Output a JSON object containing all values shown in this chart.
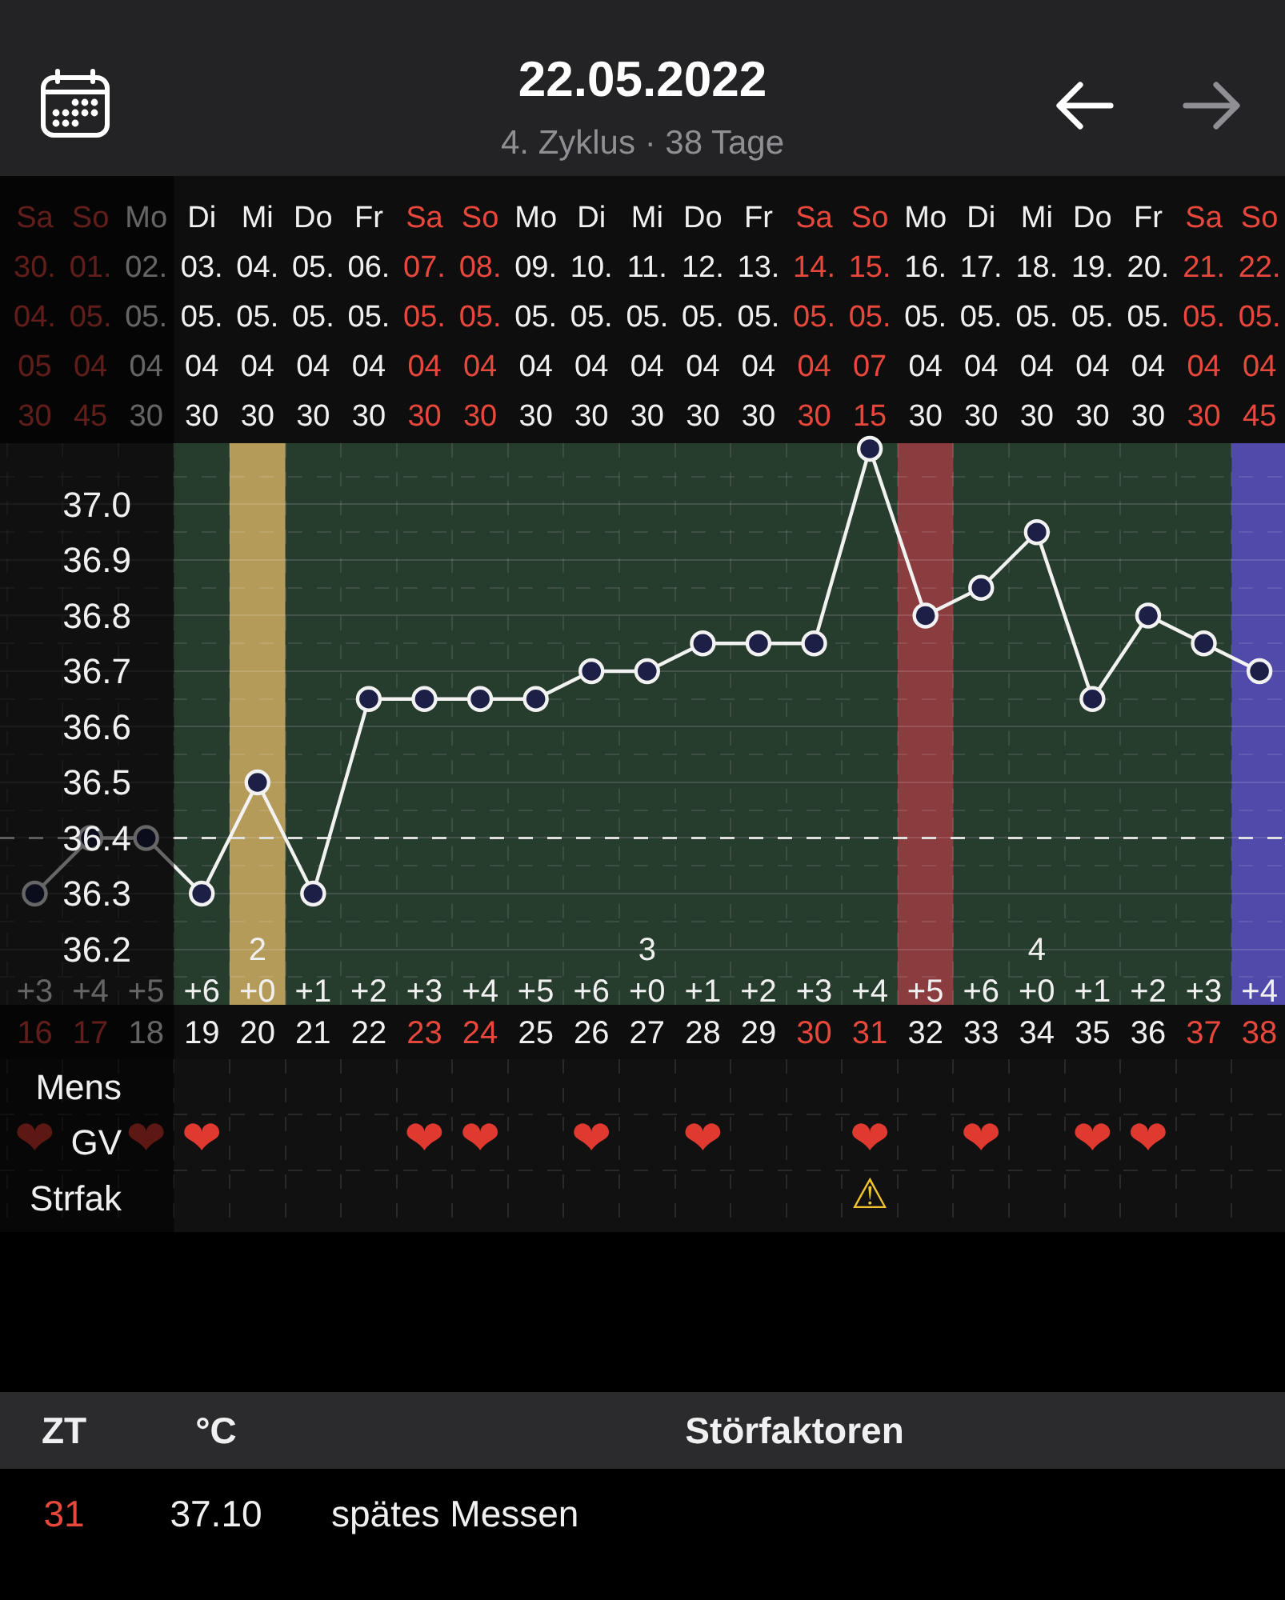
{
  "chart_data": [
    {
      "type": "line",
      "title": "22.05.2022",
      "subtitle": "4. Zyklus · 38 Tage",
      "x": [
        "2022-04-30",
        "2022-05-01",
        "2022-05-02",
        "2022-05-03",
        "2022-05-04",
        "2022-05-05",
        "2022-05-06",
        "2022-05-07",
        "2022-05-08",
        "2022-05-09",
        "2022-05-10",
        "2022-05-11",
        "2022-05-12",
        "2022-05-13",
        "2022-05-14",
        "2022-05-15",
        "2022-05-16",
        "2022-05-17",
        "2022-05-18",
        "2022-05-19",
        "2022-05-20",
        "2022-05-21",
        "2022-05-22"
      ],
      "series": [
        {
          "color": "#f2f2f2",
          "colors": [
            "#1c2046",
            "#1c2046",
            "#1c2046",
            "#1c2046",
            "#1c2046",
            "#1c2046",
            "#1c2046",
            "#1c2046",
            "#1c2046",
            "#1c2046",
            "#1c2046",
            "#1c2046",
            "#1c2046",
            "#1c2046",
            "#1c2046",
            "#1c2046",
            "#1c2046",
            "#1c2046",
            "#1c2046",
            "#1c2046",
            "#1c2046",
            "#1c2046",
            "#1c2046"
          ],
          "values": [
            36.3,
            36.4,
            36.4,
            36.3,
            36.5,
            36.3,
            36.65,
            36.65,
            36.65,
            36.65,
            36.7,
            36.7,
            36.75,
            36.75,
            36.75,
            37.1,
            36.8,
            36.85,
            36.95,
            36.65,
            36.8,
            36.75,
            36.7
          ]
        }
      ],
      "xlim": [
        "2022-04-29T09:00",
        "2022-05-22T11:00"
      ],
      "xticks": [
        {
          "value": "2022-04-30",
          "label": "\n+3\n16"
        },
        {
          "value": "2022-05-01",
          "label": "\n+4\n17"
        },
        {
          "value": "2022-05-02",
          "label": "\n+5\n18"
        },
        {
          "value": "2022-05-03",
          "label": "\n+6\n19"
        },
        {
          "value": "2022-05-04",
          "label": "2\n+0\n20"
        },
        {
          "value": "2022-05-05",
          "label": "\n+1\n21"
        },
        {
          "value": "2022-05-06",
          "label": "\n+2\n22"
        },
        {
          "value": "2022-05-07",
          "label": "\n+3\n23"
        },
        {
          "value": "2022-05-08",
          "label": "\n+4\n24"
        },
        {
          "value": "2022-05-09",
          "label": "\n+5\n25"
        },
        {
          "value": "2022-05-10",
          "label": "\n+6\n26"
        },
        {
          "value": "2022-05-11",
          "label": "3\n+0\n27"
        },
        {
          "value": "2022-05-12",
          "label": "\n+1\n28"
        },
        {
          "value": "2022-05-13",
          "label": "\n+2\n29"
        },
        {
          "value": "2022-05-14",
          "label": "\n+3\n30"
        },
        {
          "value": "2022-05-15",
          "label": "\n+4\n31"
        },
        {
          "value": "2022-05-16",
          "label": "\n+5\n32"
        },
        {
          "value": "2022-05-17",
          "label": "\n+6\n33"
        },
        {
          "value": "2022-05-18",
          "label": "4\n+0\n34"
        },
        {
          "value": "2022-05-19",
          "label": "\n+1\n35"
        },
        {
          "value": "2022-05-20",
          "label": "\n+2\n36"
        },
        {
          "value": "2022-05-21",
          "label": "\n+3\n37"
        },
        {
          "value": "2022-05-22",
          "label": "\n+4\n38"
        }
      ],
      "x2lim": [
        "2022-04-29T09:00",
        "2022-05-22T11:00"
      ],
      "x2ticks": [
        {
          "value": "2022-04-30",
          "label": "Sa\n30.\n04.\n05\n30"
        },
        {
          "value": "2022-05-01",
          "label": "So\n01.\n05.\n04\n45"
        },
        {
          "value": "2022-05-02",
          "label": "Mo\n02.\n05.\n04\n30"
        },
        {
          "value": "2022-05-03",
          "label": "Di\n03.\n05.\n04\n30"
        },
        {
          "value": "2022-05-04",
          "label": "Mi\n04.\n05.\n04\n30"
        },
        {
          "value": "2022-05-05",
          "label": "Do\n05.\n05.\n04\n30"
        },
        {
          "value": "2022-05-06",
          "label": "Fr\n06.\n05.\n04\n30"
        },
        {
          "value": "2022-05-07",
          "label": "Sa\n07.\n05.\n04\n30"
        },
        {
          "value": "2022-05-08",
          "label": "So\n08.\n05.\n04\n30"
        },
        {
          "value": "2022-05-09",
          "label": "Mo\n09.\n05.\n04\n30"
        },
        {
          "value": "2022-05-10",
          "label": "Di\n10.\n05.\n04\n30"
        },
        {
          "value": "2022-05-11",
          "label": "Mi\n11.\n05.\n04\n30"
        },
        {
          "value": "2022-05-12",
          "label": "Do\n12.\n05.\n04\n30"
        },
        {
          "value": "2022-05-13",
          "label": "Fr\n13.\n05.\n04\n30"
        },
        {
          "value": "2022-05-14",
          "label": "Sa\n14.\n05.\n04\n30"
        },
        {
          "value": "2022-05-15",
          "label": "So\n15.\n05.\n07\n15"
        },
        {
          "value": "2022-05-16",
          "label": "Mo\n16.\n05.\n04\n30"
        },
        {
          "value": "2022-05-17",
          "label": "Di\n17.\n05.\n04\n30"
        },
        {
          "value": "2022-05-18",
          "label": "Mi\n18.\n05.\n04\n30"
        },
        {
          "value": "2022-05-19",
          "label": "Do\n19.\n05.\n04\n30"
        },
        {
          "value": "2022-05-20",
          "label": "Fr\n20.\n05.\n04\n30"
        },
        {
          "value": "2022-05-21",
          "label": "Sa\n21.\n05.\n04\n30"
        },
        {
          "value": "2022-05-22",
          "label": "So\n22.\n05.\n04\n45"
        }
      ],
      "ylim": [
        36.1,
        37.11
      ],
      "yticks": [
        36.2,
        36.3,
        36.4,
        36.5,
        36.6,
        36.7,
        36.8,
        36.9,
        {
          "value": 37,
          "label": "37.0"
        }
      ],
      "grid": true,
      "marker": "circle",
      "bands": [
        {
          "axis": "x",
          "from": "2022-05-02T12:00",
          "to": "2022-05-21T12:00",
          "color": "#263c2d"
        },
        {
          "axis": "x",
          "from": "2022-05-03T12:00",
          "to": "2022-05-04T12:00",
          "color": "#b59b5a"
        },
        {
          "axis": "x",
          "from": "2022-05-15T12:00",
          "to": "2022-05-16T12:00",
          "color": "#8b3c3e"
        },
        {
          "axis": "x",
          "from": "2022-05-21T12:00",
          "to": "2022-05-22T11:00",
          "color": "#504aaa"
        },
        {
          "axis": "x",
          "from": "2022-04-29T09:00",
          "to": "2022-05-02T12:00",
          "color": "#000000"
        }
      ],
      "ref_lines": [
        {
          "axis": "y",
          "value": 36.4,
          "color": "#dddddd",
          "line_style": "dashed"
        }
      ]
    },
    {
      "type": "heatmap",
      "x": [
        "2022-04-30",
        "2022-05-01",
        "2022-05-02",
        "2022-05-03",
        "2022-05-04",
        "2022-05-05",
        "2022-05-06",
        "2022-05-07",
        "2022-05-08",
        "2022-05-09",
        "2022-05-10",
        "2022-05-11",
        "2022-05-12",
        "2022-05-13",
        "2022-05-14",
        "2022-05-15",
        "2022-05-16",
        "2022-05-17",
        "2022-05-18",
        "2022-05-19",
        "2022-05-20",
        "2022-05-21",
        "2022-05-22"
      ],
      "xlim": [
        "2022-04-29T09:00",
        "2022-05-22T11:00"
      ],
      "y_categories": [
        "Mens",
        "GV",
        "Strfak"
      ],
      "cells": [
        [
          null,
          null,
          null,
          null,
          null,
          null,
          null,
          null,
          null,
          null,
          null,
          null,
          null,
          null,
          null,
          null,
          null,
          null,
          null,
          null,
          null,
          null,
          null
        ],
        [
          null,
          null,
          null,
          null,
          null,
          null,
          null,
          null,
          null,
          null,
          null,
          null,
          null,
          null,
          null,
          null,
          null,
          null,
          null,
          null,
          null,
          null,
          null
        ],
        [
          null,
          null,
          null,
          null,
          null,
          null,
          null,
          null,
          null,
          null,
          null,
          null,
          null,
          null,
          null,
          null,
          null,
          null,
          null,
          null,
          null,
          null,
          null
        ]
      ],
      "cell_labels": [
        [
          null,
          null,
          null,
          null,
          null,
          null,
          null,
          null,
          null,
          null,
          null,
          null,
          null,
          null,
          null,
          null,
          null,
          null,
          null,
          null,
          null,
          null,
          null
        ],
        [
          "❤",
          null,
          "❤",
          "❤",
          null,
          null,
          null,
          "❤",
          "❤",
          null,
          "❤",
          null,
          "❤",
          null,
          null,
          "❤",
          null,
          "❤",
          null,
          "❤",
          "❤",
          null,
          null
        ],
        [
          null,
          null,
          null,
          null,
          null,
          null,
          null,
          null,
          null,
          null,
          null,
          null,
          null,
          null,
          null,
          "⚠",
          null,
          null,
          null,
          null,
          null,
          null,
          null
        ]
      ],
      "bands": [
        {
          "axis": "x",
          "from": "2022-04-29T09:00",
          "to": "2022-05-02T12:00",
          "color": "#000000"
        }
      ],
      "grid": true,
      "tick_labels": "y"
    },
    {
      "type": "other",
      "categories": [
        "ZT",
        "°C",
        "Störfaktoren"
      ],
      "annotations": [
        "31",
        "37.10",
        "spätes Messen"
      ]
    }
  ]
}
